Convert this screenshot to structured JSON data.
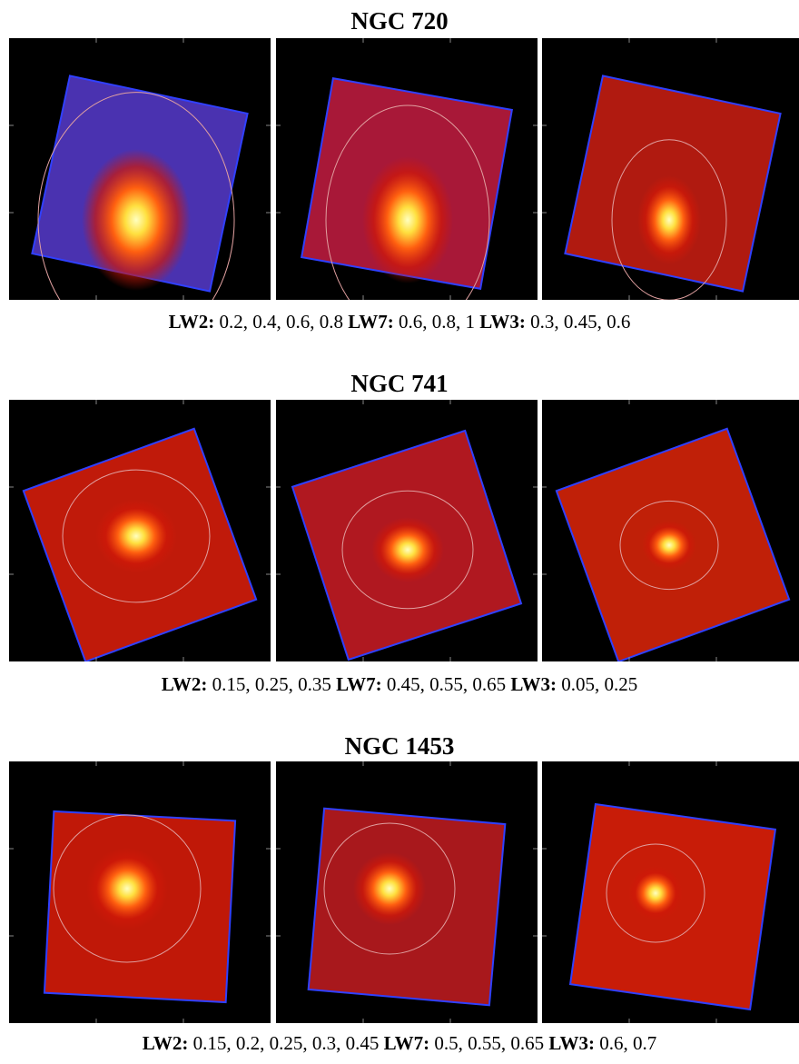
{
  "figures": [
    {
      "title": "NGC 720",
      "caption": [
        {
          "band": "LW2:",
          "levels": "0.2, 0.4, 0.6, 0.8"
        },
        {
          "band": "LW7:",
          "levels": "0.6, 0.8, 1"
        },
        {
          "band": "LW3:",
          "levels": "0.3, 0.45, 0.6"
        }
      ]
    },
    {
      "title": "NGC 741",
      "caption": [
        {
          "band": "LW2:",
          "levels": "0.15, 0.25, 0.35"
        },
        {
          "band": "LW7:",
          "levels": "0.45, 0.55, 0.65"
        },
        {
          "band": "LW3:",
          "levels": "0.05, 0.25"
        }
      ]
    },
    {
      "title": "NGC 1453",
      "caption": [
        {
          "band": "LW2:",
          "levels": "0.15, 0.2, 0.25, 0.3, 0.45"
        },
        {
          "band": "LW7:",
          "levels": "0.5, 0.55, 0.65"
        },
        {
          "band": "LW3:",
          "levels": "0.6, 0.7"
        }
      ]
    }
  ]
}
